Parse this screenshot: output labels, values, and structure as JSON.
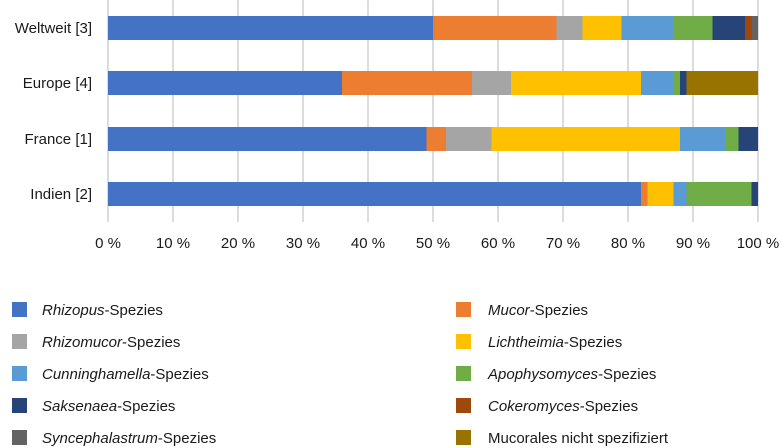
{
  "chart_data": {
    "type": "bar",
    "orientation": "horizontal",
    "stacked": true,
    "percent": true,
    "categories": [
      "Weltweit [3]",
      "Europe [4]",
      "France [1]",
      "Indien [2]"
    ],
    "xlim": [
      0,
      100
    ],
    "x_ticks": [
      "0 %",
      "10 %",
      "20 %",
      "30 %",
      "40 %",
      "50 %",
      "60 %",
      "70 %",
      "80 %",
      "90 %",
      "100 %"
    ],
    "grid": "vertical",
    "legend_position": "bottom",
    "series": [
      {
        "name": "Rhizopus-Spezies",
        "italic_part": "Rhizopus",
        "rest": "-Spezies",
        "color": "#4472C4",
        "values": [
          50,
          36,
          49,
          82
        ]
      },
      {
        "name": "Mucor-Spezies",
        "italic_part": "Mucor",
        "rest": "-Spezies",
        "color": "#ED7D31",
        "values": [
          19,
          20,
          3,
          1
        ]
      },
      {
        "name": "Rhizomucor-Spezies",
        "italic_part": "Rhizomucor",
        "rest": "-Spezies",
        "color": "#A5A5A5",
        "values": [
          4,
          6,
          7,
          0
        ]
      },
      {
        "name": "Lichtheimia-Spezies",
        "italic_part": "Lichtheimia",
        "rest": "-Spezies",
        "color": "#FFC000",
        "values": [
          6,
          20,
          29,
          4
        ]
      },
      {
        "name": "Cunninghamella-Spezies",
        "italic_part": "Cunninghamella",
        "rest": "-Spezies",
        "color": "#5B9BD5",
        "values": [
          8,
          5,
          7,
          2
        ]
      },
      {
        "name": "Apophysomyces-Spezies",
        "italic_part": "Apophysomyces",
        "rest": "-Spezies",
        "color": "#70AD47",
        "values": [
          6,
          1,
          2,
          10
        ]
      },
      {
        "name": "Saksenaea-Spezies",
        "italic_part": "Saksenaea",
        "rest": "-Spezies",
        "color": "#264478",
        "values": [
          5,
          1,
          3,
          1
        ]
      },
      {
        "name": "Cokeromyces-Spezies",
        "italic_part": "Cokeromyces",
        "rest": "-Spezies",
        "color": "#9E480E",
        "values": [
          1,
          0,
          0,
          0
        ]
      },
      {
        "name": "Syncephalastrum-Spezies",
        "italic_part": "Syncephalastrum",
        "rest": "-Spezies",
        "color": "#636363",
        "values": [
          1,
          0,
          0,
          0
        ]
      },
      {
        "name": "Mucorales nicht spezifiziert",
        "italic_part": "",
        "rest": "Mucorales nicht spezifiziert",
        "color": "#997300",
        "values": [
          0,
          11,
          0,
          0
        ]
      }
    ]
  }
}
